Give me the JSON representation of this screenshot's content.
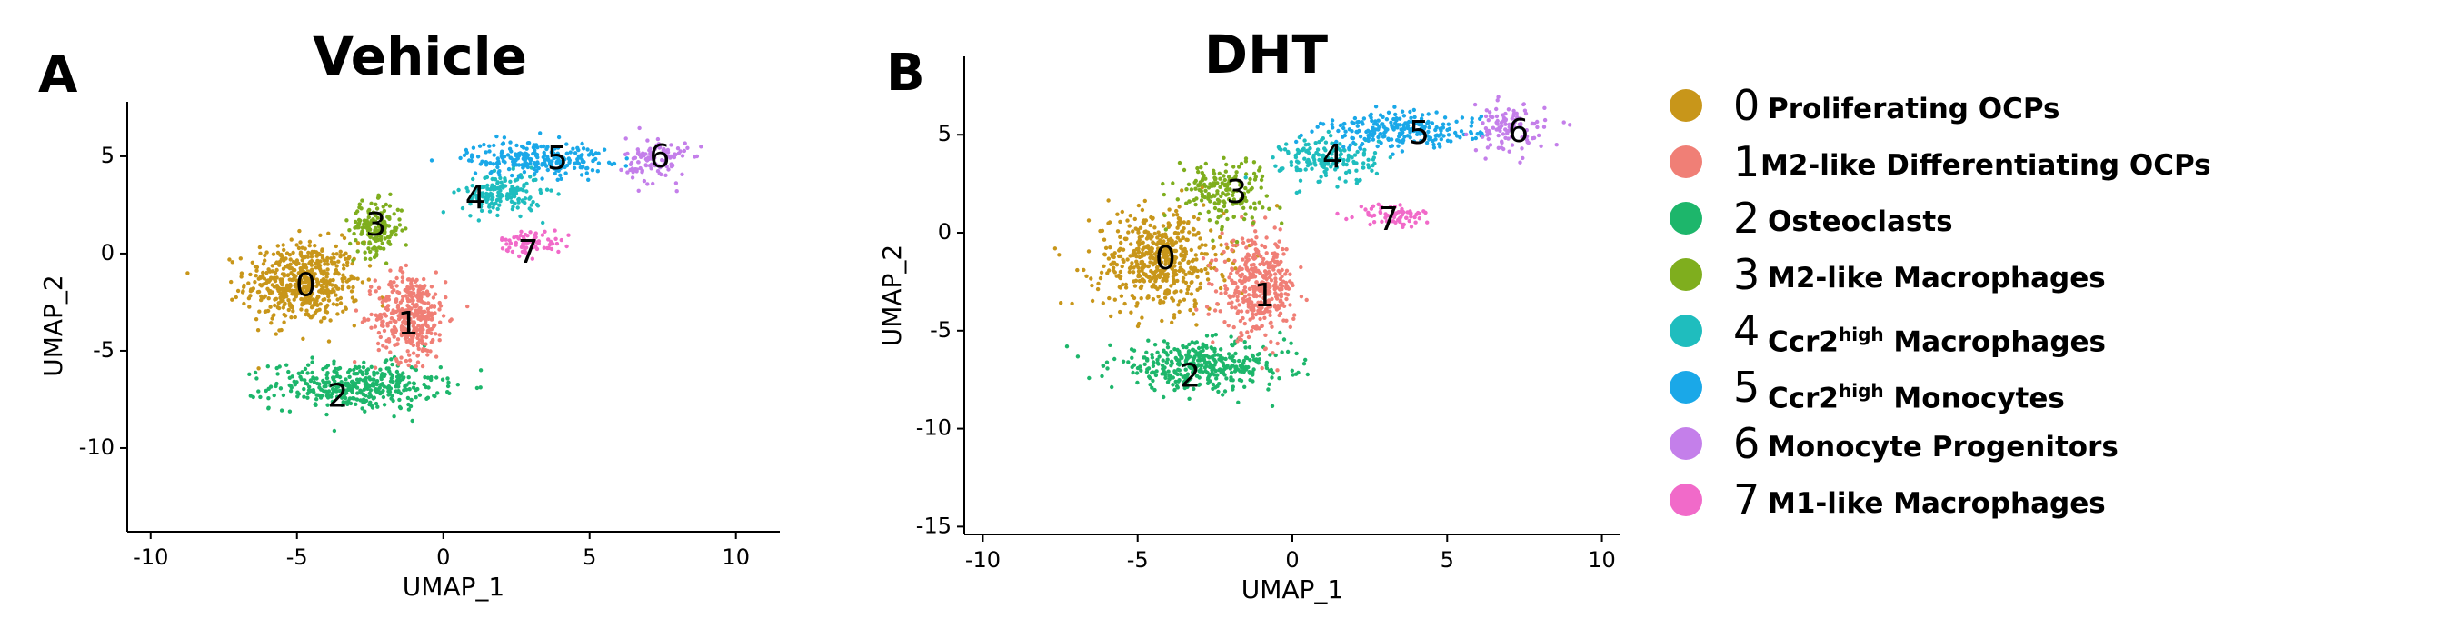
{
  "panels": [
    {
      "letter": "A",
      "title": "Vehicle"
    },
    {
      "letter": "B",
      "title": "DHT"
    }
  ],
  "legend": {
    "items": [
      {
        "num": "0",
        "label": "Proliferating OCPs",
        "color": "#C8961A"
      },
      {
        "num": "1",
        "label": "M2-like Differentiating OCPs",
        "color": "#F07F76"
      },
      {
        "num": "2",
        "label": "Osteoclasts",
        "color": "#1DB66B"
      },
      {
        "num": "3",
        "label": "M2-like Macrophages",
        "color": "#7FAE1E"
      },
      {
        "num": "4",
        "label_pre": "Ccr2",
        "label_sup": "high",
        "label_post": " Macrophages",
        "color": "#1FBDBE"
      },
      {
        "num": "5",
        "label_pre": "Ccr2",
        "label_sup": "high",
        "label_post": " Monocytes",
        "color": "#1AA8E8"
      },
      {
        "num": "6",
        "label": "Monocyte Progenitors",
        "color": "#C47FEA"
      },
      {
        "num": "7",
        "label": "M1-like Macrophages",
        "color": "#F16AC9"
      }
    ]
  },
  "chart_data": [
    {
      "type": "scatter",
      "title": "Vehicle",
      "xlabel": "UMAP_1",
      "ylabel": "UMAP_2",
      "xlim": [
        -10.8,
        11.5
      ],
      "ylim": [
        -14.3,
        7.8
      ],
      "xticks": [
        -10,
        -5,
        0,
        5,
        10
      ],
      "yticks": [
        -10,
        -5,
        0,
        5
      ],
      "grid": false,
      "clusters": [
        {
          "id": "0",
          "center": [
            -4.8,
            -1.5
          ],
          "spread": [
            1.3,
            1.4
          ],
          "label_pos": [
            -4.7,
            -1.7
          ]
        },
        {
          "id": "1",
          "center": [
            -1.1,
            -3.2
          ],
          "spread": [
            0.8,
            1.5
          ],
          "label_pos": [
            -1.2,
            -3.7
          ]
        },
        {
          "id": "2",
          "center": [
            -3.0,
            -6.8
          ],
          "spread": [
            1.9,
            0.8
          ],
          "label_pos": [
            -3.6,
            -7.4
          ]
        },
        {
          "id": "3",
          "center": [
            -2.3,
            1.3
          ],
          "spread": [
            0.6,
            0.9
          ],
          "label_pos": [
            -2.3,
            1.4
          ]
        },
        {
          "id": "4",
          "center": [
            2.0,
            3.1
          ],
          "spread": [
            0.9,
            0.7
          ],
          "label_pos": [
            1.1,
            2.8
          ]
        },
        {
          "id": "5",
          "center": [
            3.2,
            4.9
          ],
          "spread": [
            1.6,
            0.6
          ],
          "label_pos": [
            3.9,
            4.8
          ]
        },
        {
          "id": "6",
          "center": [
            7.3,
            4.8
          ],
          "spread": [
            0.7,
            0.8
          ],
          "label_pos": [
            7.4,
            4.9
          ]
        },
        {
          "id": "7",
          "center": [
            3.0,
            0.6
          ],
          "spread": [
            0.7,
            0.4
          ],
          "label_pos": [
            2.9,
            0.0
          ]
        }
      ]
    },
    {
      "type": "scatter",
      "title": "DHT",
      "xlabel": "UMAP_1",
      "ylabel": "UMAP_2",
      "xlim": [
        -10.6,
        10.6
      ],
      "ylim": [
        -15.4,
        9.0
      ],
      "xticks": [
        -10,
        -5,
        0,
        5,
        10
      ],
      "yticks": [
        -15,
        -10,
        -5,
        0,
        5
      ],
      "grid": false,
      "clusters": [
        {
          "id": "0",
          "center": [
            -4.3,
            -1.4
          ],
          "spread": [
            1.4,
            1.7
          ],
          "label_pos": [
            -4.1,
            -1.4
          ]
        },
        {
          "id": "1",
          "center": [
            -1.1,
            -2.8
          ],
          "spread": [
            0.8,
            1.6
          ],
          "label_pos": [
            -0.9,
            -3.3
          ]
        },
        {
          "id": "2",
          "center": [
            -3.0,
            -6.8
          ],
          "spread": [
            1.9,
            0.8
          ],
          "label_pos": [
            -3.3,
            -7.4
          ]
        },
        {
          "id": "3",
          "center": [
            -2.3,
            2.2
          ],
          "spread": [
            1.0,
            1.1
          ],
          "label_pos": [
            -1.8,
            2.0
          ]
        },
        {
          "id": "4",
          "center": [
            1.2,
            3.7
          ],
          "spread": [
            1.0,
            0.8
          ],
          "label_pos": [
            1.3,
            3.8
          ]
        },
        {
          "id": "5",
          "center": [
            3.5,
            5.2
          ],
          "spread": [
            1.7,
            0.6
          ],
          "label_pos": [
            4.1,
            5.0
          ]
        },
        {
          "id": "6",
          "center": [
            7.0,
            5.3
          ],
          "spread": [
            0.8,
            0.8
          ],
          "label_pos": [
            7.3,
            5.1
          ]
        },
        {
          "id": "7",
          "center": [
            3.3,
            0.9
          ],
          "spread": [
            0.8,
            0.4
          ],
          "label_pos": [
            3.1,
            0.6
          ]
        }
      ]
    }
  ]
}
